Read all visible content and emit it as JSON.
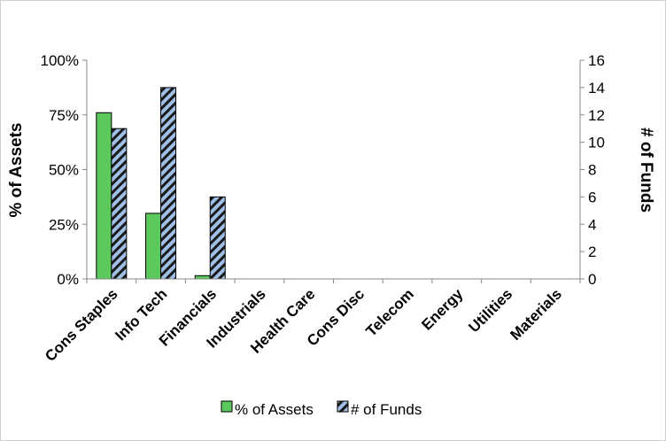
{
  "chart_data": {
    "type": "bar",
    "categories": [
      "Cons Staples",
      "Info Tech",
      "Financials",
      "Industrials",
      "Health Care",
      "Cons Disc",
      "Telecom",
      "Energy",
      "Utilities",
      "Materials"
    ],
    "series": [
      {
        "name": "% of Assets",
        "axis": "left",
        "unit": "%",
        "color": "#5cc95c",
        "values": [
          76,
          30,
          1.5,
          0,
          0,
          0,
          0,
          0,
          0,
          0
        ]
      },
      {
        "name": "# of Funds",
        "axis": "right",
        "color": "#9fbfe6",
        "pattern": "diagonal-stripes",
        "values": [
          11,
          14,
          6,
          0,
          0,
          0,
          0,
          0,
          0,
          0
        ]
      }
    ],
    "ylabel": "% of Assets",
    "ylabel_right": "# of Funds",
    "ylim": [
      0,
      100
    ],
    "ylim_right": [
      0,
      16
    ],
    "yticks": [
      "0%",
      "25%",
      "50%",
      "75%",
      "100%"
    ],
    "yticks_right": [
      "0",
      "2",
      "4",
      "6",
      "8",
      "10",
      "12",
      "14",
      "16"
    ],
    "grid": false,
    "legend": "bottom"
  }
}
